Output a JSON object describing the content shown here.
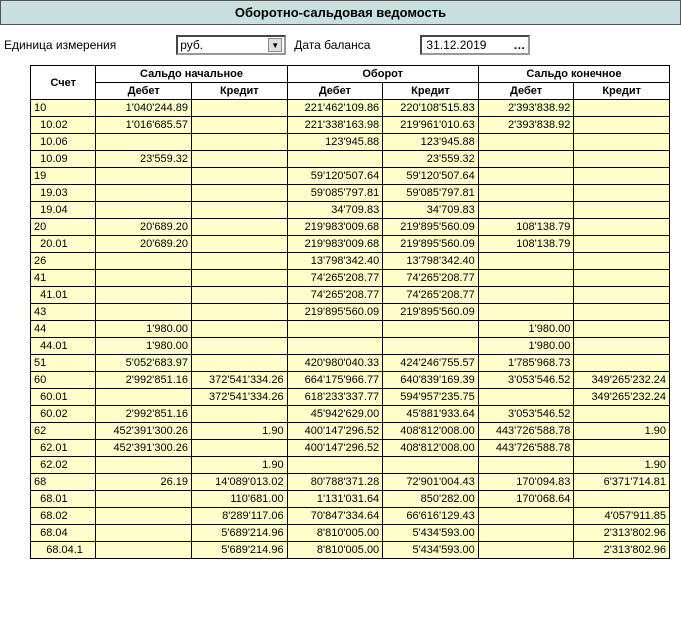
{
  "title": "Оборотно-сальдовая ведомость",
  "params": {
    "unit_label": "Единица измерения",
    "unit_value": "руб.",
    "date_label": "Дата баланса",
    "date_value": "31.12.2019"
  },
  "colors": {
    "header_bg": "#c8e0e0",
    "row_bg": "#ffffcc",
    "border": "#000000"
  },
  "table": {
    "headers": {
      "account": "Счет",
      "opening": "Сальдо начальное",
      "turnover": "Оборот",
      "closing": "Сальдо конечное",
      "debit": "Дебет",
      "credit": "Кредит"
    },
    "rows": [
      {
        "acct": "10",
        "od": "1'040'244.89",
        "oc": "",
        "td": "221'462'109.86",
        "tc": "220'108'515.83",
        "cd": "2'393'838.92",
        "cc": ""
      },
      {
        "acct": "  10.02",
        "od": "1'016'685.57",
        "oc": "",
        "td": "221'338'163.98",
        "tc": "219'961'010.63",
        "cd": "2'393'838.92",
        "cc": ""
      },
      {
        "acct": "  10.06",
        "od": "",
        "oc": "",
        "td": "123'945.88",
        "tc": "123'945.88",
        "cd": "",
        "cc": ""
      },
      {
        "acct": "  10.09",
        "od": "23'559.32",
        "oc": "",
        "td": "",
        "tc": "23'559.32",
        "cd": "",
        "cc": ""
      },
      {
        "acct": "19",
        "od": "",
        "oc": "",
        "td": "59'120'507.64",
        "tc": "59'120'507.64",
        "cd": "",
        "cc": ""
      },
      {
        "acct": "  19.03",
        "od": "",
        "oc": "",
        "td": "59'085'797.81",
        "tc": "59'085'797.81",
        "cd": "",
        "cc": ""
      },
      {
        "acct": "  19.04",
        "od": "",
        "oc": "",
        "td": "34'709.83",
        "tc": "34'709.83",
        "cd": "",
        "cc": ""
      },
      {
        "acct": "20",
        "od": "20'689.20",
        "oc": "",
        "td": "219'983'009.68",
        "tc": "219'895'560.09",
        "cd": "108'138.79",
        "cc": ""
      },
      {
        "acct": "  20.01",
        "od": "20'689.20",
        "oc": "",
        "td": "219'983'009.68",
        "tc": "219'895'560.09",
        "cd": "108'138.79",
        "cc": ""
      },
      {
        "acct": "26",
        "od": "",
        "oc": "",
        "td": "13'798'342.40",
        "tc": "13'798'342.40",
        "cd": "",
        "cc": ""
      },
      {
        "acct": "41",
        "od": "",
        "oc": "",
        "td": "74'265'208.77",
        "tc": "74'265'208.77",
        "cd": "",
        "cc": ""
      },
      {
        "acct": "  41.01",
        "od": "",
        "oc": "",
        "td": "74'265'208.77",
        "tc": "74'265'208.77",
        "cd": "",
        "cc": ""
      },
      {
        "acct": "43",
        "od": "",
        "oc": "",
        "td": "219'895'560.09",
        "tc": "219'895'560.09",
        "cd": "",
        "cc": ""
      },
      {
        "acct": "44",
        "od": "1'980.00",
        "oc": "",
        "td": "",
        "tc": "",
        "cd": "1'980.00",
        "cc": ""
      },
      {
        "acct": "  44.01",
        "od": "1'980.00",
        "oc": "",
        "td": "",
        "tc": "",
        "cd": "1'980.00",
        "cc": ""
      },
      {
        "acct": "51",
        "od": "5'052'683.97",
        "oc": "",
        "td": "420'980'040.33",
        "tc": "424'246'755.57",
        "cd": "1'785'968.73",
        "cc": ""
      },
      {
        "acct": "60",
        "od": "2'992'851.16",
        "oc": "372'541'334.26",
        "td": "664'175'966.77",
        "tc": "640'839'169.39",
        "cd": "3'053'546.52",
        "cc": "349'265'232.24"
      },
      {
        "acct": "  60.01",
        "od": "",
        "oc": "372'541'334.26",
        "td": "618'233'337.77",
        "tc": "594'957'235.75",
        "cd": "",
        "cc": "349'265'232.24"
      },
      {
        "acct": "  60.02",
        "od": "2'992'851.16",
        "oc": "",
        "td": "45'942'629.00",
        "tc": "45'881'933.64",
        "cd": "3'053'546.52",
        "cc": ""
      },
      {
        "acct": "62",
        "od": "452'391'300.26",
        "oc": "1.90",
        "td": "400'147'296.52",
        "tc": "408'812'008.00",
        "cd": "443'726'588.78",
        "cc": "1.90"
      },
      {
        "acct": "  62.01",
        "od": "452'391'300.26",
        "oc": "",
        "td": "400'147'296.52",
        "tc": "408'812'008.00",
        "cd": "443'726'588.78",
        "cc": ""
      },
      {
        "acct": "  62.02",
        "od": "",
        "oc": "1.90",
        "td": "",
        "tc": "",
        "cd": "",
        "cc": "1.90"
      },
      {
        "acct": "68",
        "od": "26.19",
        "oc": "14'089'013.02",
        "td": "80'788'371.28",
        "tc": "72'901'004.43",
        "cd": "170'094.83",
        "cc": "6'371'714.81"
      },
      {
        "acct": "  68.01",
        "od": "",
        "oc": "110'681.00",
        "td": "1'131'031.64",
        "tc": "850'282.00",
        "cd": "170'068.64",
        "cc": ""
      },
      {
        "acct": "  68.02",
        "od": "",
        "oc": "8'289'117.06",
        "td": "70'847'334.64",
        "tc": "66'616'129.43",
        "cd": "",
        "cc": "4'057'911.85"
      },
      {
        "acct": "  68.04",
        "od": "",
        "oc": "5'689'214.96",
        "td": "8'810'005.00",
        "tc": "5'434'593.00",
        "cd": "",
        "cc": "2'313'802.96"
      },
      {
        "acct": "    68.04.1",
        "od": "",
        "oc": "5'689'214.96",
        "td": "8'810'005.00",
        "tc": "5'434'593.00",
        "cd": "",
        "cc": "2'313'802.96"
      }
    ]
  }
}
